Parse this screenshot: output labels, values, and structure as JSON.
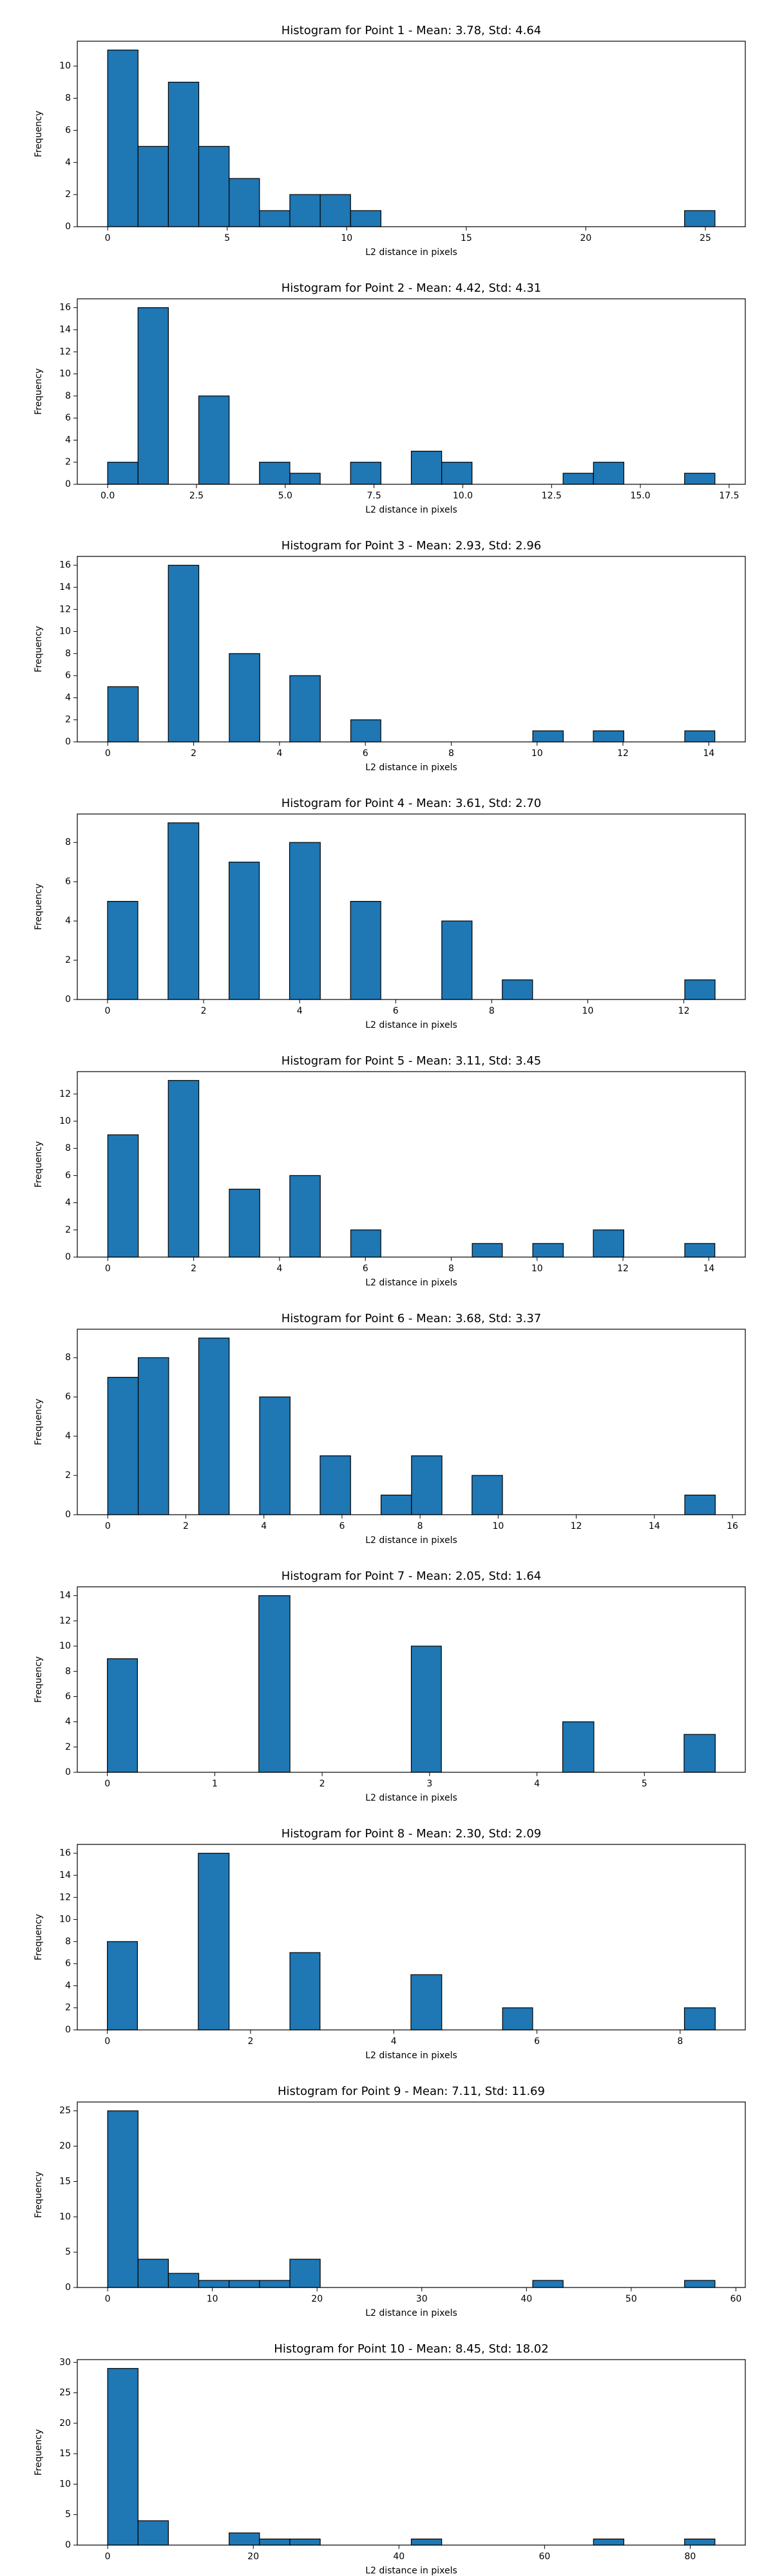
{
  "chart_data": [
    {
      "type": "histogram",
      "title": "Histogram for Point 1 - Mean: 3.78, Std: 4.64",
      "x_label": "L2 distance in pixels",
      "y_label": "Frequency",
      "color": "#1f77b4",
      "edgecolor": "#000000",
      "bins": [
        0,
        1.27,
        2.54,
        3.81,
        5.08,
        6.35,
        7.62,
        8.89,
        10.16,
        11.43,
        12.7,
        13.97,
        15.24,
        16.51,
        17.78,
        19.05,
        20.32,
        21.59,
        22.86,
        24.13,
        25.4
      ],
      "values": [
        11,
        5,
        9,
        5,
        3,
        1,
        2,
        2,
        1,
        0,
        0,
        0,
        0,
        0,
        0,
        0,
        0,
        0,
        0,
        1
      ],
      "xlim": [
        -1.27,
        26.67
      ],
      "xticks": [
        0,
        5,
        10,
        15,
        20,
        25
      ],
      "ylim": [
        0,
        11.55
      ],
      "yticks": [
        0,
        2,
        4,
        6,
        8,
        10
      ]
    },
    {
      "type": "histogram",
      "title": "Histogram for Point 2 - Mean: 4.42, Std: 4.31",
      "x_label": "L2 distance in pixels",
      "y_label": "Frequency",
      "color": "#1f77b4",
      "edgecolor": "#000000",
      "bins": [
        0,
        0.855,
        1.71,
        2.565,
        3.42,
        4.275,
        5.13,
        5.985,
        6.84,
        7.695,
        8.55,
        9.405,
        10.26,
        11.115,
        11.97,
        12.825,
        13.68,
        14.535,
        15.39,
        16.245,
        17.1
      ],
      "values": [
        2,
        16,
        0,
        8,
        0,
        2,
        1,
        0,
        2,
        0,
        3,
        2,
        0,
        0,
        0,
        1,
        2,
        0,
        0,
        1
      ],
      "xlim": [
        -0.855,
        17.955
      ],
      "xticks": [
        {
          "value": 0,
          "label": "0.0"
        },
        2.5,
        {
          "value": 5,
          "label": "5.0"
        },
        7.5,
        {
          "value": 10,
          "label": "10.0"
        },
        12.5,
        {
          "value": 15,
          "label": "15.0"
        },
        17.5
      ],
      "ylim": [
        0,
        16.8
      ],
      "yticks": [
        0,
        2,
        4,
        6,
        8,
        10,
        12,
        14,
        16
      ]
    },
    {
      "type": "histogram",
      "title": "Histogram for Point 3 - Mean: 2.93, Std: 2.96",
      "x_label": "L2 distance in pixels",
      "y_label": "Frequency",
      "color": "#1f77b4",
      "edgecolor": "#000000",
      "bins": [
        0,
        0.71,
        1.41,
        2.12,
        2.83,
        3.54,
        4.24,
        4.95,
        5.66,
        6.36,
        7.07,
        7.78,
        8.49,
        9.19,
        9.9,
        10.61,
        11.31,
        12.02,
        12.73,
        13.44,
        14.14
      ],
      "values": [
        5,
        0,
        16,
        0,
        8,
        0,
        6,
        0,
        2,
        0,
        0,
        0,
        0,
        0,
        1,
        0,
        1,
        0,
        0,
        1
      ],
      "xlim": [
        -0.71,
        14.85
      ],
      "xticks": [
        0,
        2,
        4,
        6,
        8,
        10,
        12,
        14
      ],
      "ylim": [
        0,
        16.8
      ],
      "yticks": [
        0,
        2,
        4,
        6,
        8,
        10,
        12,
        14,
        16
      ]
    },
    {
      "type": "histogram",
      "title": "Histogram for Point 4 - Mean: 3.61, Std: 2.70",
      "x_label": "L2 distance in pixels",
      "y_label": "Frequency",
      "color": "#1f77b4",
      "edgecolor": "#000000",
      "bins": [
        0,
        0.63,
        1.26,
        1.9,
        2.53,
        3.16,
        3.79,
        4.43,
        5.06,
        5.69,
        6.32,
        6.96,
        7.59,
        8.22,
        8.85,
        9.49,
        10.12,
        10.75,
        11.38,
        12.02,
        12.65
      ],
      "values": [
        5,
        0,
        9,
        0,
        7,
        0,
        8,
        0,
        5,
        0,
        0,
        4,
        0,
        1,
        0,
        0,
        0,
        0,
        0,
        1
      ],
      "xlim": [
        -0.63,
        13.28
      ],
      "xticks": [
        0,
        2,
        4,
        6,
        8,
        10,
        12
      ],
      "ylim": [
        0,
        9.45
      ],
      "yticks": [
        0,
        2,
        4,
        6,
        8
      ]
    },
    {
      "type": "histogram",
      "title": "Histogram for Point 5 - Mean: 3.11, Std: 3.45",
      "x_label": "L2 distance in pixels",
      "y_label": "Frequency",
      "color": "#1f77b4",
      "edgecolor": "#000000",
      "bins": [
        0,
        0.71,
        1.41,
        2.12,
        2.83,
        3.54,
        4.24,
        4.95,
        5.66,
        6.36,
        7.07,
        7.78,
        8.49,
        9.19,
        9.9,
        10.61,
        11.31,
        12.02,
        12.73,
        13.44,
        14.14
      ],
      "values": [
        9,
        0,
        13,
        0,
        5,
        0,
        6,
        0,
        2,
        0,
        0,
        0,
        1,
        0,
        1,
        0,
        2,
        0,
        0,
        1
      ],
      "xlim": [
        -0.71,
        14.85
      ],
      "xticks": [
        0,
        2,
        4,
        6,
        8,
        10,
        12,
        14
      ],
      "ylim": [
        0,
        13.65
      ],
      "yticks": [
        0,
        2,
        4,
        6,
        8,
        10,
        12
      ]
    },
    {
      "type": "histogram",
      "title": "Histogram for Point 6 - Mean: 3.68, Std: 3.37",
      "x_label": "L2 distance in pixels",
      "y_label": "Frequency",
      "color": "#1f77b4",
      "edgecolor": "#000000",
      "bins": [
        0,
        0.78,
        1.56,
        2.33,
        3.11,
        3.89,
        4.67,
        5.44,
        6.22,
        7,
        7.78,
        8.56,
        9.33,
        10.11,
        10.89,
        11.67,
        12.44,
        13.22,
        14,
        14.78,
        15.56
      ],
      "values": [
        7,
        8,
        0,
        9,
        0,
        6,
        0,
        3,
        0,
        1,
        3,
        0,
        2,
        0,
        0,
        0,
        0,
        0,
        0,
        1
      ],
      "xlim": [
        -0.78,
        16.33
      ],
      "xticks": [
        0,
        2,
        4,
        6,
        8,
        10,
        12,
        14,
        16
      ],
      "ylim": [
        0,
        9.45
      ],
      "yticks": [
        0,
        2,
        4,
        6,
        8
      ]
    },
    {
      "type": "histogram",
      "title": "Histogram for Point 7 - Mean: 2.05, Std: 1.64",
      "x_label": "L2 distance in pixels",
      "y_label": "Frequency",
      "color": "#1f77b4",
      "edgecolor": "#000000",
      "bins": [
        0,
        0.28,
        0.57,
        0.85,
        1.13,
        1.41,
        1.7,
        1.98,
        2.26,
        2.55,
        2.83,
        3.11,
        3.39,
        3.68,
        3.96,
        4.24,
        4.53,
        4.81,
        5.09,
        5.37,
        5.66
      ],
      "values": [
        9,
        0,
        0,
        0,
        0,
        14,
        0,
        0,
        0,
        0,
        10,
        0,
        0,
        0,
        0,
        4,
        0,
        0,
        0,
        3
      ],
      "xlim": [
        -0.28,
        5.94
      ],
      "xticks": [
        0,
        1,
        2,
        3,
        4,
        5
      ],
      "ylim": [
        0,
        14.7
      ],
      "yticks": [
        0,
        2,
        4,
        6,
        8,
        10,
        12,
        14
      ]
    },
    {
      "type": "histogram",
      "title": "Histogram for Point 8 - Mean: 2.30, Std: 2.09",
      "x_label": "L2 distance in pixels",
      "y_label": "Frequency",
      "color": "#1f77b4",
      "edgecolor": "#000000",
      "bins": [
        0,
        0.42,
        0.85,
        1.27,
        1.7,
        2.12,
        2.55,
        2.97,
        3.39,
        3.82,
        4.24,
        4.67,
        5.09,
        5.52,
        5.94,
        6.36,
        6.79,
        7.21,
        7.64,
        8.06,
        8.49
      ],
      "values": [
        8,
        0,
        0,
        16,
        0,
        0,
        7,
        0,
        0,
        0,
        5,
        0,
        0,
        2,
        0,
        0,
        0,
        0,
        0,
        2
      ],
      "xlim": [
        -0.42,
        8.91
      ],
      "xticks": [
        0,
        2,
        4,
        6,
        8
      ],
      "ylim": [
        0,
        16.8
      ],
      "yticks": [
        0,
        2,
        4,
        6,
        8,
        10,
        12,
        14,
        16
      ]
    },
    {
      "type": "histogram",
      "title": "Histogram for Point 9 - Mean: 7.11, Std: 11.69",
      "x_label": "L2 distance in pixels",
      "y_label": "Frequency",
      "color": "#1f77b4",
      "edgecolor": "#000000",
      "bins": [
        0,
        2.9,
        5.8,
        8.7,
        11.6,
        14.5,
        17.4,
        20.3,
        23.2,
        26.1,
        29,
        31.9,
        34.8,
        37.7,
        40.6,
        43.5,
        46.4,
        49.3,
        52.2,
        55.1,
        58
      ],
      "values": [
        25,
        4,
        2,
        1,
        1,
        1,
        4,
        0,
        0,
        0,
        0,
        0,
        0,
        0,
        1,
        0,
        0,
        0,
        0,
        1
      ],
      "xlim": [
        -2.9,
        60.9
      ],
      "xticks": [
        0,
        10,
        20,
        30,
        40,
        50,
        60
      ],
      "ylim": [
        0,
        26.25
      ],
      "yticks": [
        0,
        5,
        10,
        15,
        20,
        25
      ]
    },
    {
      "type": "histogram",
      "title": "Histogram for Point 10 - Mean: 8.45, Std: 18.02",
      "x_label": "L2 distance in pixels",
      "y_label": "Frequency",
      "color": "#1f77b4",
      "edgecolor": "#000000",
      "bins": [
        0,
        4.17,
        8.34,
        12.51,
        16.68,
        20.85,
        25.02,
        29.19,
        33.36,
        37.53,
        41.7,
        45.87,
        50.04,
        54.21,
        58.38,
        62.55,
        66.72,
        70.89,
        75.06,
        79.23,
        83.4
      ],
      "values": [
        29,
        4,
        0,
        0,
        2,
        1,
        1,
        0,
        0,
        0,
        1,
        0,
        0,
        0,
        0,
        0,
        1,
        0,
        0,
        1
      ],
      "xlim": [
        -4.17,
        87.57
      ],
      "xticks": [
        0,
        20,
        40,
        60,
        80
      ],
      "ylim": [
        0,
        30.45
      ],
      "yticks": [
        0,
        5,
        10,
        15,
        20,
        25,
        30
      ]
    }
  ]
}
